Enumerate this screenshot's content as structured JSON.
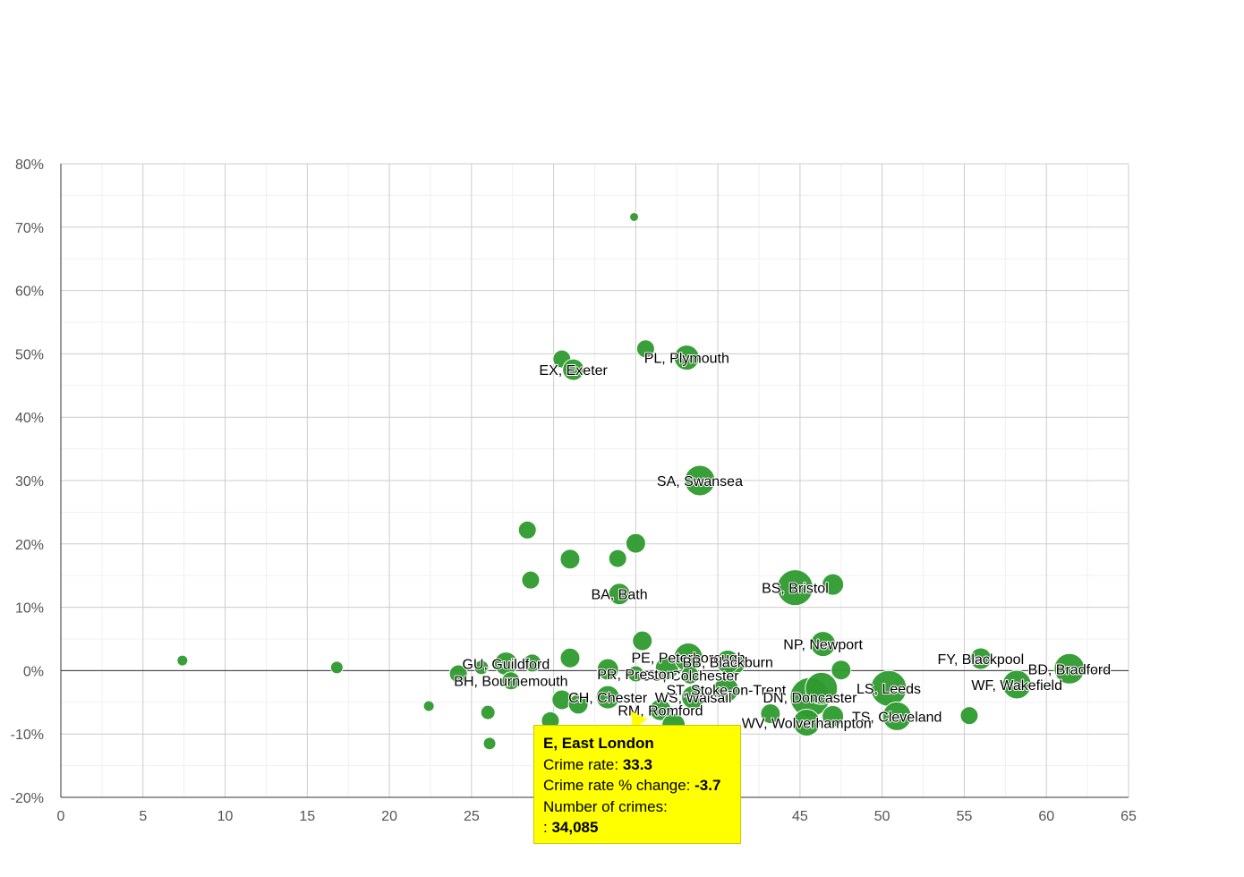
{
  "chart_data": {
    "type": "scatter",
    "title": "",
    "xlabel": "",
    "ylabel": "",
    "xlim": [
      0,
      65
    ],
    "ylim": [
      -20,
      80
    ],
    "x_ticks": [
      0,
      5,
      10,
      15,
      20,
      25,
      30,
      35,
      40,
      45,
      50,
      55,
      60,
      65
    ],
    "y_ticks": [
      80,
      70,
      60,
      50,
      40,
      30,
      20,
      10,
      0,
      -10,
      -20
    ],
    "y_tick_labels": [
      "80%",
      "70%",
      "60%",
      "50%",
      "40%",
      "30%",
      "20%",
      "10%",
      "0%",
      "-10%",
      "-20%"
    ],
    "x_tick_labels": [
      "0",
      "5",
      "10",
      "15",
      "20",
      "25",
      "30",
      "35",
      "40",
      "45",
      "50",
      "55",
      "60",
      "65"
    ],
    "grid": true,
    "bubble_color": "#2e9a2e",
    "points": [
      {
        "x": 7.4,
        "y": 1.6,
        "r": 6
      },
      {
        "x": 16.8,
        "y": 0.5,
        "r": 7
      },
      {
        "x": 22.4,
        "y": -5.6,
        "r": 6
      },
      {
        "x": 26.1,
        "y": -11.5,
        "r": 7
      },
      {
        "x": 34.9,
        "y": 71.6,
        "r": 5
      },
      {
        "x": 35.6,
        "y": 50.8,
        "r": 10
      },
      {
        "x": 30.5,
        "y": 49.2,
        "r": 10
      },
      {
        "x": 31.2,
        "y": 47.5,
        "r": 12,
        "label": "EX, Exeter"
      },
      {
        "x": 38.1,
        "y": 49.4,
        "r": 14,
        "label": "PL, Plymouth"
      },
      {
        "x": 38.9,
        "y": 30.0,
        "r": 17,
        "label": "SA, Swansea"
      },
      {
        "x": 28.4,
        "y": 22.2,
        "r": 10
      },
      {
        "x": 31.0,
        "y": 17.6,
        "r": 11
      },
      {
        "x": 33.9,
        "y": 17.7,
        "r": 10
      },
      {
        "x": 35.0,
        "y": 20.1,
        "r": 11
      },
      {
        "x": 28.6,
        "y": 14.3,
        "r": 10
      },
      {
        "x": 34.0,
        "y": 12.1,
        "r": 12,
        "label": "BA, Bath"
      },
      {
        "x": 44.7,
        "y": 13.1,
        "r": 20,
        "label": "BS, Bristol"
      },
      {
        "x": 47.0,
        "y": 13.6,
        "r": 12
      },
      {
        "x": 35.4,
        "y": 4.7,
        "r": 11
      },
      {
        "x": 46.4,
        "y": 4.2,
        "r": 14,
        "label": "NP, Newport"
      },
      {
        "x": 47.5,
        "y": 0.1,
        "r": 11
      },
      {
        "x": 56.0,
        "y": 1.9,
        "r": 12,
        "label": "FY, Blackpool"
      },
      {
        "x": 61.4,
        "y": 0.3,
        "r": 17,
        "label": "BD, Bradford"
      },
      {
        "x": 58.2,
        "y": -2.2,
        "r": 16,
        "label": "WF, Wakefield"
      },
      {
        "x": 55.3,
        "y": -7.1,
        "r": 10
      },
      {
        "x": 50.4,
        "y": -2.8,
        "r": 20,
        "label": "LS, Leeds"
      },
      {
        "x": 50.9,
        "y": -7.2,
        "r": 16,
        "label": "TS, Cleveland"
      },
      {
        "x": 24.2,
        "y": -0.5,
        "r": 10
      },
      {
        "x": 25.6,
        "y": 0.5,
        "r": 8
      },
      {
        "x": 27.1,
        "y": 1.1,
        "r": 13,
        "label": "GU, Guildford"
      },
      {
        "x": 28.7,
        "y": 1.2,
        "r": 10
      },
      {
        "x": 27.4,
        "y": -1.6,
        "r": 10,
        "label": "BH, Bournemouth"
      },
      {
        "x": 26.0,
        "y": -6.6,
        "r": 8
      },
      {
        "x": 31.0,
        "y": 2.0,
        "r": 11
      },
      {
        "x": 33.3,
        "y": 0.2,
        "r": 12
      },
      {
        "x": 36.9,
        "y": 0.4,
        "r": 13
      },
      {
        "x": 38.2,
        "y": 2.1,
        "r": 16,
        "label": "PE, Peterborough"
      },
      {
        "x": 41.0,
        "y": 1.1,
        "r": 12
      },
      {
        "x": 40.6,
        "y": 1.4,
        "r": 13,
        "label": "BB, Blackburn"
      },
      {
        "x": 38.3,
        "y": -0.7,
        "r": 10,
        "label": "CO, Colchester"
      },
      {
        "x": 35.0,
        "y": -0.5,
        "r": 9,
        "label": "PR, Preston"
      },
      {
        "x": 33.3,
        "y": -4.2,
        "r": 13,
        "label": "CH, Chester"
      },
      {
        "x": 30.5,
        "y": -4.6,
        "r": 11
      },
      {
        "x": 29.8,
        "y": -7.9,
        "r": 10
      },
      {
        "x": 31.5,
        "y": -5.3,
        "r": 11
      },
      {
        "x": 36.5,
        "y": -6.2,
        "r": 12,
        "label": "RM, Romford"
      },
      {
        "x": 38.5,
        "y": -4.2,
        "r": 13,
        "label": "WS, Walsall"
      },
      {
        "x": 37.3,
        "y": -8.6,
        "r": 13
      },
      {
        "x": 40.5,
        "y": -3.0,
        "r": 14,
        "label": "ST, Stoke-on-Trent"
      },
      {
        "x": 43.2,
        "y": -6.8,
        "r": 11
      },
      {
        "x": 45.6,
        "y": -4.2,
        "r": 22,
        "label": "DN, Doncaster"
      },
      {
        "x": 46.3,
        "y": -2.8,
        "r": 18
      },
      {
        "x": 45.4,
        "y": -8.2,
        "r": 15,
        "label": "WV, Wolverhampton"
      },
      {
        "x": 47.0,
        "y": -7.2,
        "r": 12
      }
    ]
  },
  "tooltip": {
    "title": "E, East London",
    "rate_label": "Crime rate:",
    "rate_value": "33.3",
    "change_label": "Crime rate % change:",
    "change_value": "-3.7",
    "crimes_label": "Number of crimes:",
    "crimes_prefix": ":",
    "crimes_value": "34,085"
  }
}
